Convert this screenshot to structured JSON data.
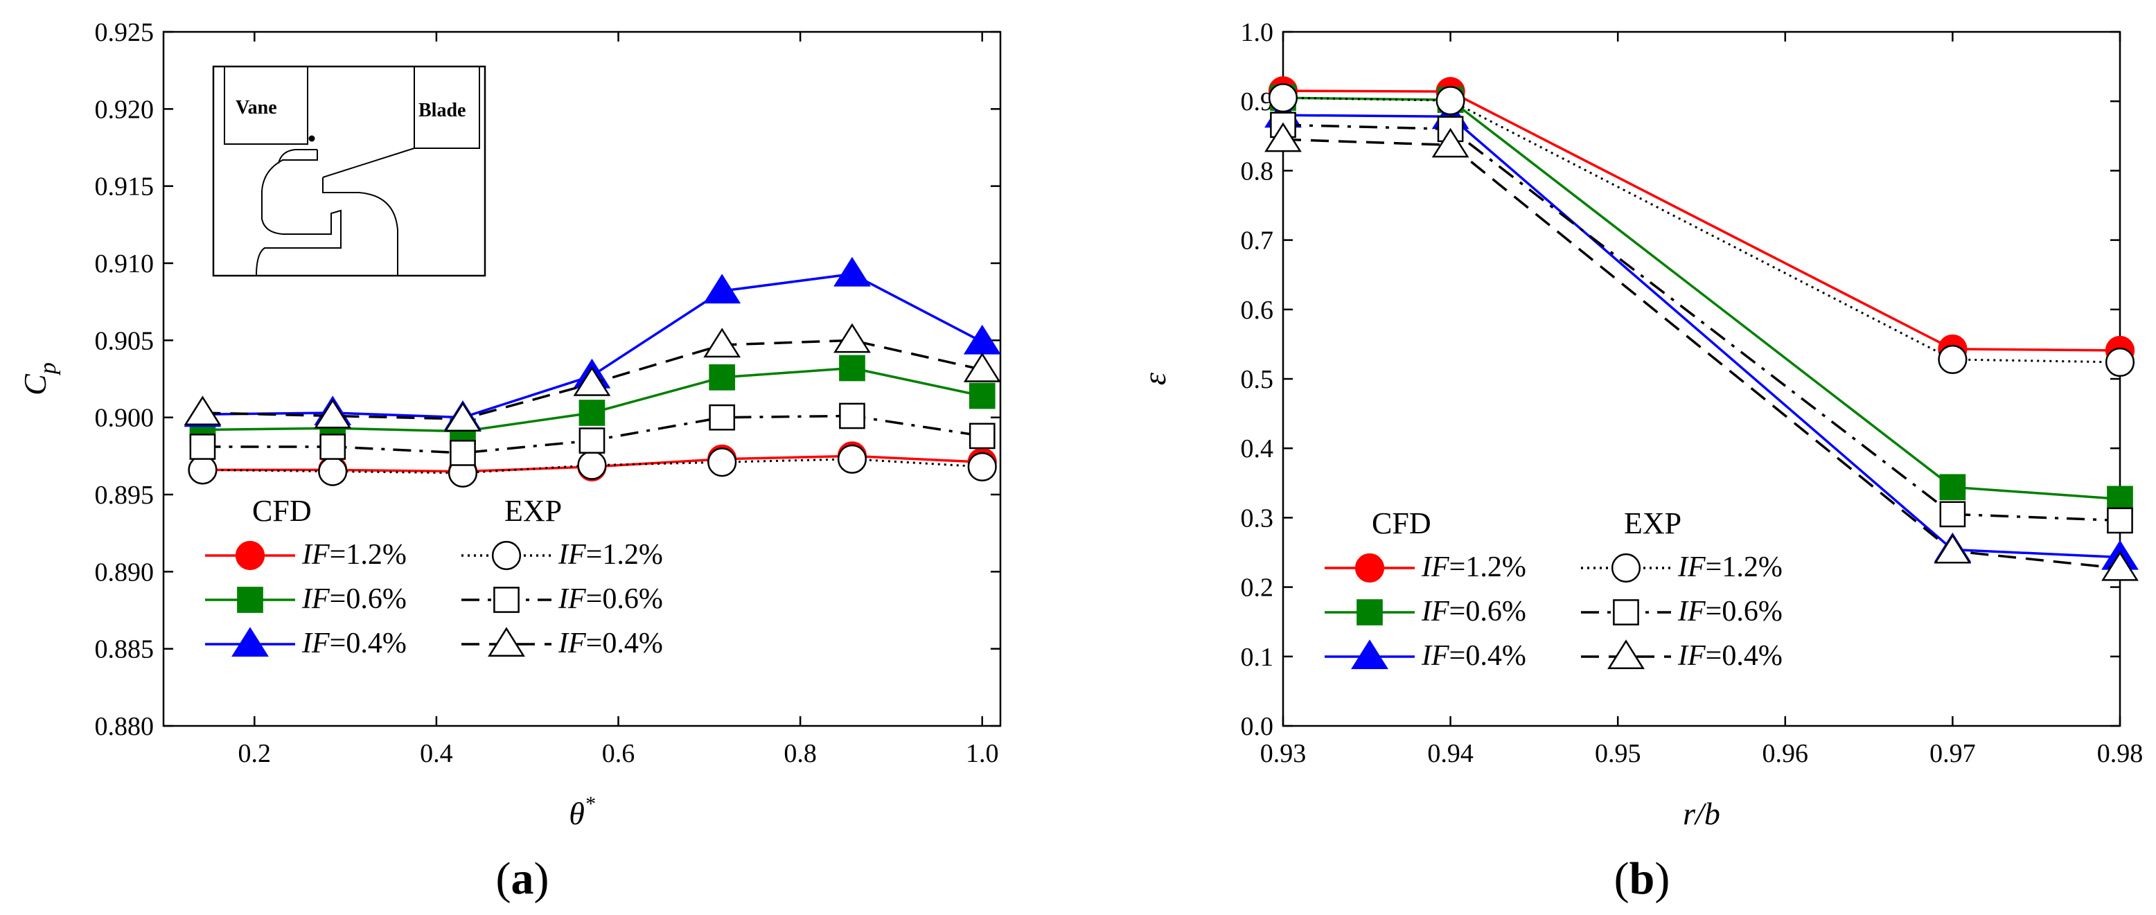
{
  "chart_data": [
    {
      "type": "line",
      "panel_label": "(a)",
      "panel_letter": "a",
      "xlabel": "θ",
      "xlabel_sup": "*",
      "ylabel": "C",
      "ylabel_sub": "p",
      "xlim": [
        0.1,
        1.02
      ],
      "ylim": [
        0.88,
        0.925
      ],
      "xticks": [
        "0.2",
        "0.4",
        "0.6",
        "0.8",
        "1.0"
      ],
      "xtick_values": [
        0.2,
        0.4,
        0.6,
        0.8,
        1.0
      ],
      "yticks": [
        "0.880",
        "0.885",
        "0.890",
        "0.895",
        "0.900",
        "0.905",
        "0.910",
        "0.915",
        "0.920",
        "0.925"
      ],
      "ytick_values": [
        0.88,
        0.885,
        0.89,
        0.895,
        0.9,
        0.905,
        0.91,
        0.915,
        0.92,
        0.925
      ],
      "x": [
        0.143,
        0.286,
        0.429,
        0.571,
        0.714,
        0.857,
        1.0
      ],
      "legend": {
        "placement": "bottom-left",
        "header_left": "CFD",
        "header_right": "EXP"
      },
      "inset": {
        "label_left": "Vane",
        "label_right": "Blade"
      },
      "series": [
        {
          "group": "CFD",
          "prefix": "IF",
          "suffix": "=1.2%",
          "color": "#ff0000",
          "marker": "circle-filled",
          "dash": "solid",
          "values": [
            0.8966,
            0.8966,
            0.8965,
            0.8968,
            0.8973,
            0.8975,
            0.8971
          ]
        },
        {
          "group": "CFD",
          "prefix": "IF",
          "suffix": "=0.6%",
          "color": "#008000",
          "marker": "square-filled",
          "dash": "solid",
          "values": [
            0.8992,
            0.8993,
            0.8991,
            0.9003,
            0.9026,
            0.9032,
            0.9014
          ]
        },
        {
          "group": "CFD",
          "prefix": "IF",
          "suffix": "=0.4%",
          "color": "#0000ff",
          "marker": "triangle-filled",
          "dash": "solid",
          "values": [
            0.9002,
            0.9003,
            0.9,
            0.9027,
            0.9082,
            0.9093,
            0.9049
          ]
        },
        {
          "group": "EXP",
          "prefix": "IF",
          "suffix": "=1.2%",
          "color": "#000000",
          "marker": "circle-open",
          "dash": "dot",
          "values": [
            0.8966,
            0.8965,
            0.8964,
            0.8969,
            0.8971,
            0.8973,
            0.8968
          ]
        },
        {
          "group": "EXP",
          "prefix": "IF",
          "suffix": "=0.6%",
          "color": "#000000",
          "marker": "square-open",
          "dash": "dashdot",
          "values": [
            0.8981,
            0.8981,
            0.8977,
            0.8985,
            0.9,
            0.9001,
            0.8988
          ]
        },
        {
          "group": "EXP",
          "prefix": "IF",
          "suffix": "=0.4%",
          "color": "#000000",
          "marker": "triangle-open",
          "dash": "dash",
          "values": [
            0.9003,
            0.9001,
            0.8999,
            0.9022,
            0.9047,
            0.905,
            0.9031
          ]
        }
      ]
    },
    {
      "type": "line",
      "panel_label": "(b)",
      "panel_letter": "b",
      "xlabel": "r/b",
      "ylabel": "ε",
      "xlim": [
        0.93,
        0.98
      ],
      "ylim": [
        0.0,
        1.0
      ],
      "xticks": [
        "0.93",
        "0.94",
        "0.95",
        "0.96",
        "0.97",
        "0.98"
      ],
      "xtick_values": [
        0.93,
        0.94,
        0.95,
        0.96,
        0.97,
        0.98
      ],
      "yticks": [
        "0.0",
        "0.1",
        "0.2",
        "0.3",
        "0.4",
        "0.5",
        "0.6",
        "0.7",
        "0.8",
        "0.9",
        "1.0"
      ],
      "ytick_values": [
        0.0,
        0.1,
        0.2,
        0.3,
        0.4,
        0.5,
        0.6,
        0.7,
        0.8,
        0.9,
        1.0
      ],
      "x": [
        0.93,
        0.94,
        0.97,
        0.98
      ],
      "legend": {
        "placement": "bottom-left",
        "header_left": "CFD",
        "header_right": "EXP"
      },
      "series": [
        {
          "group": "CFD",
          "prefix": "IF",
          "suffix": "=1.2%",
          "color": "#ff0000",
          "marker": "circle-filled",
          "dash": "solid",
          "values": [
            0.915,
            0.914,
            0.543,
            0.541
          ]
        },
        {
          "group": "CFD",
          "prefix": "IF",
          "suffix": "=0.6%",
          "color": "#008000",
          "marker": "square-filled",
          "dash": "solid",
          "values": [
            0.905,
            0.902,
            0.344,
            0.327
          ]
        },
        {
          "group": "CFD",
          "prefix": "IF",
          "suffix": "=0.4%",
          "color": "#0000ff",
          "marker": "triangle-filled",
          "dash": "solid",
          "values": [
            0.88,
            0.878,
            0.254,
            0.243
          ]
        },
        {
          "group": "EXP",
          "prefix": "IF",
          "suffix": "=1.2%",
          "color": "#000000",
          "marker": "circle-open",
          "dash": "dot",
          "values": [
            0.905,
            0.901,
            0.528,
            0.524
          ]
        },
        {
          "group": "EXP",
          "prefix": "IF",
          "suffix": "=0.6%",
          "color": "#000000",
          "marker": "square-open",
          "dash": "dashdot",
          "values": [
            0.866,
            0.86,
            0.305,
            0.296
          ]
        },
        {
          "group": "EXP",
          "prefix": "IF",
          "suffix": "=0.4%",
          "color": "#000000",
          "marker": "triangle-open",
          "dash": "dash",
          "values": [
            0.845,
            0.837,
            0.252,
            0.227
          ]
        }
      ]
    }
  ]
}
